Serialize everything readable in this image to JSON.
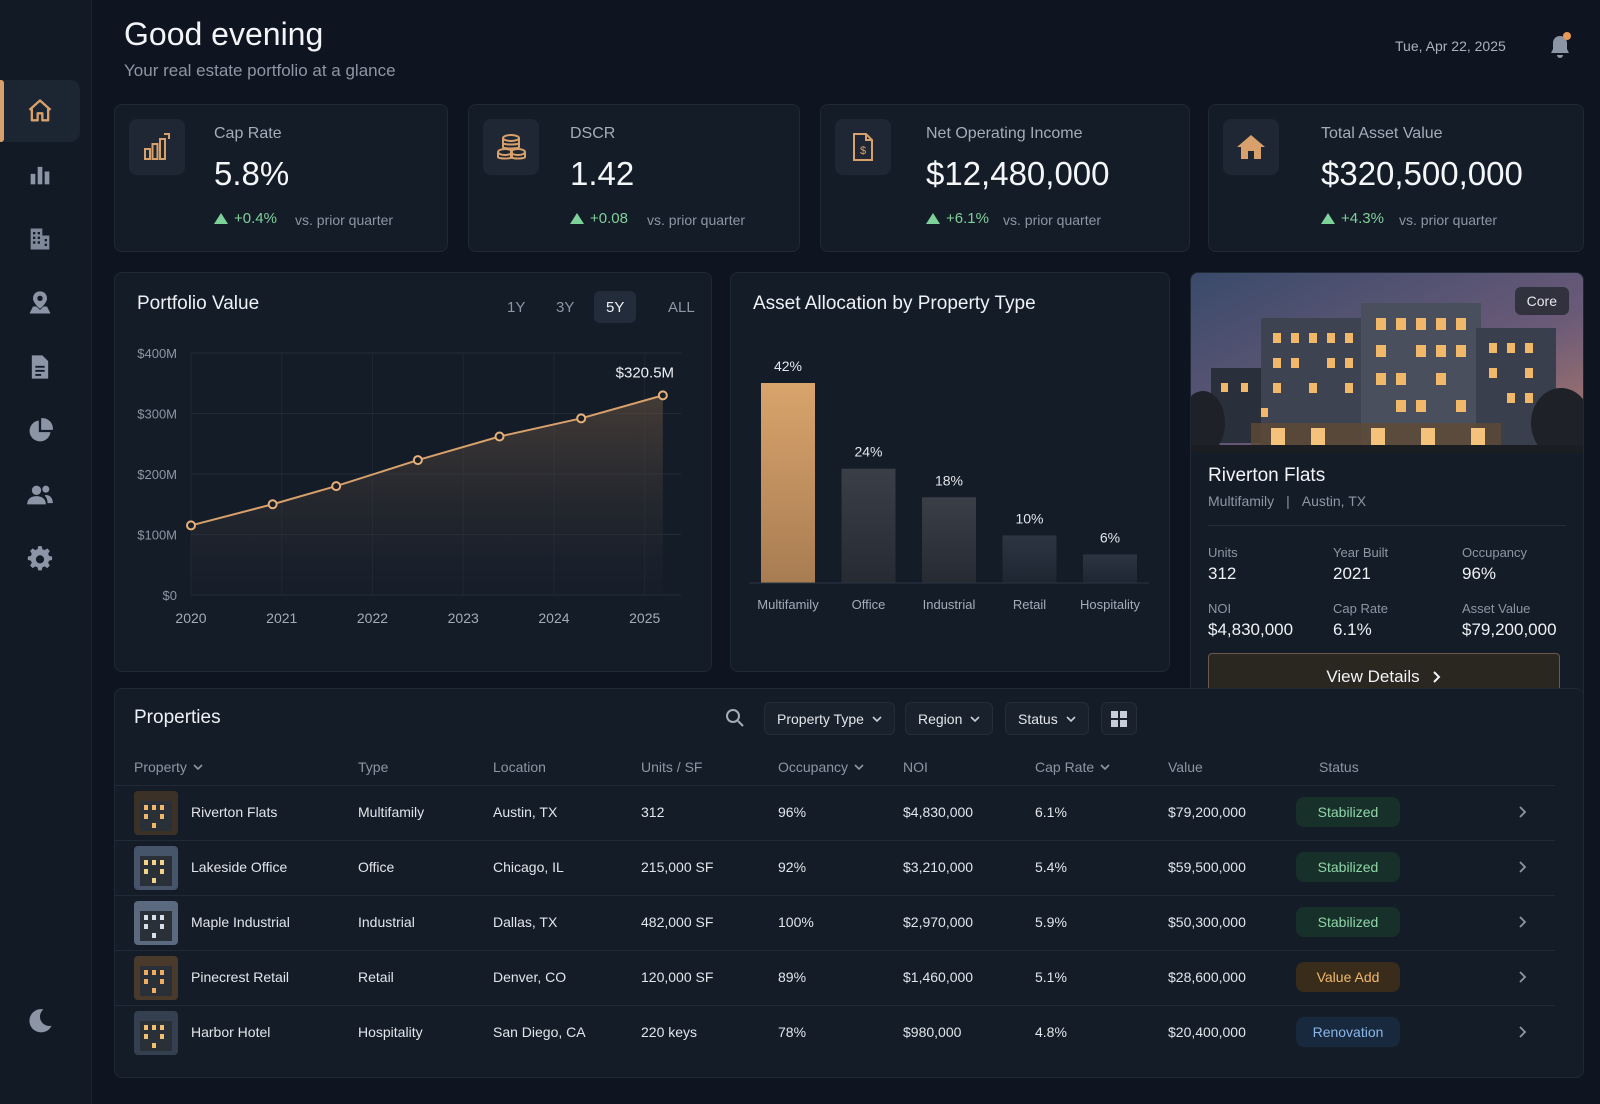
{
  "header": {
    "greeting": "Good evening",
    "subtitle": "Your real estate portfolio at a glance",
    "date": "Tue, Apr 22, 2025"
  },
  "sidebar": {
    "items": [
      {
        "icon": "home-icon",
        "active": true
      },
      {
        "icon": "bar-chart-icon"
      },
      {
        "icon": "building-icon"
      },
      {
        "icon": "map-pin-icon"
      },
      {
        "icon": "document-icon"
      },
      {
        "icon": "pie-chart-icon"
      },
      {
        "icon": "users-icon"
      },
      {
        "icon": "gear-icon"
      }
    ],
    "bottom_icon": "moon-icon"
  },
  "kpis": [
    {
      "label": "Cap Rate",
      "value": "5.8%",
      "delta": "+0.4%",
      "note": "vs. prior quarter",
      "icon": "bar-chart-icon"
    },
    {
      "label": "DSCR",
      "value": "1.42",
      "delta": "+0.08",
      "note": "vs. prior quarter",
      "icon": "coins-icon"
    },
    {
      "label": "Net Operating Income",
      "value": "$12,480,000",
      "delta": "+6.1%",
      "note": "vs. prior quarter",
      "icon": "invoice-icon"
    },
    {
      "label": "Total Asset Value",
      "value": "$320,500,000",
      "delta": "+4.3%",
      "note": "vs. prior quarter",
      "icon": "house-icon"
    }
  ],
  "portfolio_chart": {
    "title": "Portfolio Value",
    "ranges": [
      "1Y",
      "3Y",
      "5Y",
      "ALL"
    ],
    "active_range": "5Y",
    "end_label": "$320.5M"
  },
  "allocation_chart": {
    "title": "Asset Allocation by Property Type"
  },
  "chart_data": [
    {
      "type": "area",
      "x": [
        2020.0,
        2020.9,
        2021.6,
        2022.5,
        2023.4,
        2024.3,
        2025.2
      ],
      "values": [
        115,
        150,
        180,
        223,
        262,
        292,
        330
      ],
      "x_ticks": [
        "2020",
        "2021",
        "2022",
        "2023",
        "2024",
        "2025"
      ],
      "y_ticks": [
        "$0",
        "$100M",
        "$200M",
        "$300M",
        "$400M"
      ],
      "ylim": [
        0,
        400
      ],
      "grid": true
    },
    {
      "type": "bar",
      "categories": [
        "Multifamily",
        "Office",
        "Industrial",
        "Retail",
        "Hospitality"
      ],
      "values": [
        42,
        24,
        18,
        10,
        6
      ],
      "value_labels": [
        "42%",
        "24%",
        "18%",
        "10%",
        "6%"
      ],
      "highlight_color": "#d8a06a"
    }
  ],
  "featured": {
    "badge": "Core",
    "name": "Riverton Flats",
    "type": "Multifamily",
    "separator": "|",
    "location": "Austin, TX",
    "stats": [
      {
        "label": "Units",
        "value": "312"
      },
      {
        "label": "Year Built",
        "value": "2021"
      },
      {
        "label": "Occupancy",
        "value": "96%"
      },
      {
        "label": "NOI",
        "value": "$4,830,000"
      },
      {
        "label": "Cap Rate",
        "value": "6.1%"
      },
      {
        "label": "Asset Value",
        "value": "$79,200,000"
      }
    ],
    "button": "View Details"
  },
  "properties": {
    "title": "Properties",
    "filters": [
      "Property Type",
      "Region",
      "Status"
    ],
    "columns": [
      "Property",
      "Type",
      "Location",
      "Units / SF",
      "Occupancy",
      "NOI",
      "Cap Rate",
      "Value",
      "Status"
    ],
    "rows": [
      {
        "name": "Riverton Flats",
        "type": "Multifamily",
        "location": "Austin, TX",
        "units": "312",
        "occupancy": "96%",
        "noi": "$4,830,000",
        "cap": "6.1%",
        "value": "$79,200,000",
        "status": "Stabilized",
        "status_kind": "green"
      },
      {
        "name": "Lakeside Office",
        "type": "Office",
        "location": "Chicago, IL",
        "units": "215,000 SF",
        "occupancy": "92%",
        "noi": "$3,210,000",
        "cap": "5.4%",
        "value": "$59,500,000",
        "status": "Stabilized",
        "status_kind": "green"
      },
      {
        "name": "Maple Industrial",
        "type": "Industrial",
        "location": "Dallas, TX",
        "units": "482,000 SF",
        "occupancy": "100%",
        "noi": "$2,970,000",
        "cap": "5.9%",
        "value": "$50,300,000",
        "status": "Stabilized",
        "status_kind": "green"
      },
      {
        "name": "Pinecrest Retail",
        "type": "Retail",
        "location": "Denver, CO",
        "units": "120,000 SF",
        "occupancy": "89%",
        "noi": "$1,460,000",
        "cap": "5.1%",
        "value": "$28,600,000",
        "status": "Value Add",
        "status_kind": "amber"
      },
      {
        "name": "Harbor Hotel",
        "type": "Hospitality",
        "location": "San Diego, CA",
        "units": "220 keys",
        "occupancy": "78%",
        "noi": "$980,000",
        "cap": "4.8%",
        "value": "$20,400,000",
        "status": "Renovation",
        "status_kind": "blue"
      }
    ]
  }
}
